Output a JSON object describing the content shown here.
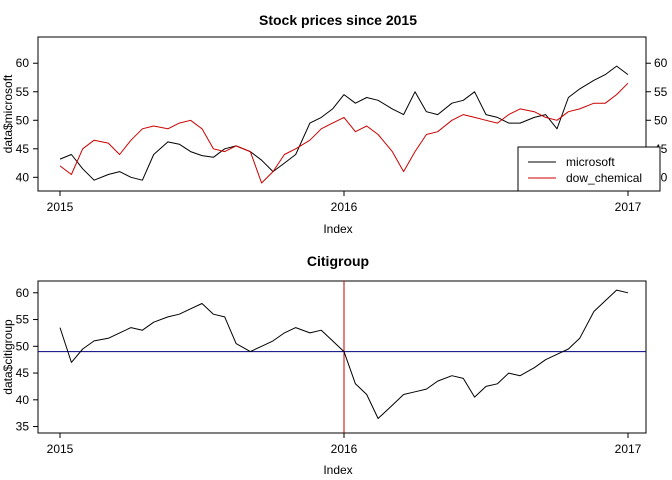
{
  "chart_data": [
    {
      "type": "line",
      "title": "Stock prices since 2015",
      "xlabel": "Index",
      "ylabel": "data$microsoft",
      "x_tick_labels": [
        "2015",
        "2016",
        "2017"
      ],
      "y_ticks_left": [
        "40",
        "45",
        "50",
        "55",
        "60"
      ],
      "y_ticks_right": [
        "40",
        "45",
        "50",
        "55",
        "60"
      ],
      "ylim": [
        37.6,
        64.6
      ],
      "x": [
        2015.0,
        2015.04,
        2015.08,
        2015.12,
        2015.17,
        2015.21,
        2015.25,
        2015.29,
        2015.33,
        2015.38,
        2015.42,
        2015.46,
        2015.5,
        2015.54,
        2015.58,
        2015.62,
        2015.67,
        2015.71,
        2015.75,
        2015.79,
        2015.83,
        2015.88,
        2015.92,
        2015.96,
        2016.0,
        2016.04,
        2016.08,
        2016.12,
        2016.17,
        2016.21,
        2016.25,
        2016.29,
        2016.33,
        2016.38,
        2016.42,
        2016.46,
        2016.5,
        2016.54,
        2016.58,
        2016.62,
        2016.67,
        2016.71,
        2016.75,
        2016.79,
        2016.83,
        2016.88,
        2016.92,
        2016.96,
        2017.0
      ],
      "series": [
        {
          "name": "microsoft",
          "color": "#000000",
          "values": [
            43.2,
            44.0,
            41.5,
            39.5,
            40.5,
            41.0,
            40.0,
            39.5,
            44.0,
            46.2,
            45.8,
            44.5,
            43.8,
            43.5,
            45.0,
            45.5,
            44.5,
            43.0,
            41.0,
            42.5,
            44.0,
            49.5,
            50.5,
            52.0,
            54.5,
            53.0,
            54.0,
            53.5,
            52.0,
            51.0,
            55.0,
            51.5,
            51.0,
            53.0,
            53.5,
            55.0,
            51.0,
            50.5,
            49.5,
            49.5,
            50.5,
            51.0,
            48.5,
            54.0,
            55.5,
            57.0,
            58.0,
            59.5,
            58.0
          ]
        },
        {
          "name": "dow_chemical",
          "color": "#cc0000",
          "values": [
            42.0,
            40.5,
            45.0,
            46.5,
            46.0,
            44.0,
            46.5,
            48.5,
            49.0,
            48.5,
            49.5,
            50.0,
            48.5,
            45.0,
            44.5,
            45.5,
            44.5,
            39.0,
            41.0,
            44.0,
            45.0,
            46.5,
            48.5,
            49.5,
            50.5,
            48.0,
            49.0,
            47.5,
            44.5,
            41.0,
            44.5,
            47.5,
            48.0,
            50.0,
            51.0,
            50.5,
            50.0,
            49.5,
            51.0,
            52.0,
            51.5,
            50.5,
            50.0,
            51.5,
            52.0,
            53.0,
            53.0,
            54.5,
            56.5
          ]
        }
      ],
      "legend": {
        "position": "bottom-right",
        "entries": [
          "microsoft",
          "dow_chemical"
        ]
      }
    },
    {
      "type": "line",
      "title": "Citigroup",
      "xlabel": "Index",
      "ylabel": "data$citigroup",
      "x_tick_labels": [
        "2015",
        "2016",
        "2017"
      ],
      "y_ticks_left": [
        "35",
        "40",
        "45",
        "50",
        "55",
        "60"
      ],
      "ylim": [
        33.8,
        62.2
      ],
      "x": [
        2015.0,
        2015.04,
        2015.08,
        2015.12,
        2015.17,
        2015.21,
        2015.25,
        2015.29,
        2015.33,
        2015.38,
        2015.42,
        2015.46,
        2015.5,
        2015.54,
        2015.58,
        2015.62,
        2015.67,
        2015.71,
        2015.75,
        2015.79,
        2015.83,
        2015.88,
        2015.92,
        2015.96,
        2016.0,
        2016.04,
        2016.08,
        2016.12,
        2016.17,
        2016.21,
        2016.25,
        2016.29,
        2016.33,
        2016.38,
        2016.42,
        2016.46,
        2016.5,
        2016.54,
        2016.58,
        2016.62,
        2016.67,
        2016.71,
        2016.75,
        2016.79,
        2016.83,
        2016.88,
        2016.92,
        2016.96,
        2017.0
      ],
      "series": [
        {
          "name": "",
          "color": "#000000",
          "values": [
            53.5,
            47.0,
            49.5,
            51.0,
            51.5,
            52.5,
            53.5,
            53.0,
            54.5,
            55.5,
            56.0,
            57.0,
            58.0,
            56.0,
            55.5,
            50.5,
            49.0,
            50.0,
            51.0,
            52.5,
            53.5,
            52.5,
            53.0,
            51.0,
            49.0,
            43.0,
            41.0,
            36.5,
            39.0,
            41.0,
            41.5,
            42.0,
            43.5,
            44.5,
            44.0,
            40.5,
            42.5,
            43.0,
            45.0,
            44.5,
            46.0,
            47.5,
            48.5,
            49.5,
            51.5,
            56.5,
            58.5,
            60.5,
            60.0
          ]
        }
      ],
      "hline": {
        "y": 49.0,
        "color": "#000080"
      },
      "vline": {
        "x": 2016.0,
        "color": "#cc0000"
      }
    }
  ]
}
